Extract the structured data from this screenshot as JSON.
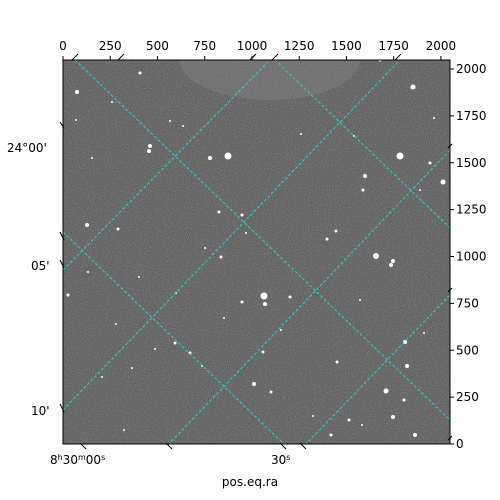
{
  "figure": {
    "xlabel": "pos.eq.ra",
    "pixel_x_ticks": [
      "0",
      "250",
      "500",
      "750",
      "1000",
      "1250",
      "1500",
      "1750",
      "2000"
    ],
    "pixel_y_ticks": [
      "0",
      "250",
      "500",
      "750",
      "1000",
      "1250",
      "1500",
      "1750",
      "2000"
    ],
    "ra_ticks": [
      {
        "prefix": "8",
        "h": "h",
        "mid": "30",
        "m": "m",
        "val": "00",
        "s": "s"
      },
      {
        "prefix": "",
        "h": "",
        "mid": "",
        "m": "",
        "val": "30",
        "s": "s"
      }
    ],
    "dec_ticks": [
      "24°00'",
      "05'",
      "10'"
    ],
    "grid_color": "#22d3d3",
    "image_description": "grayscale star field with bright point sources"
  }
}
